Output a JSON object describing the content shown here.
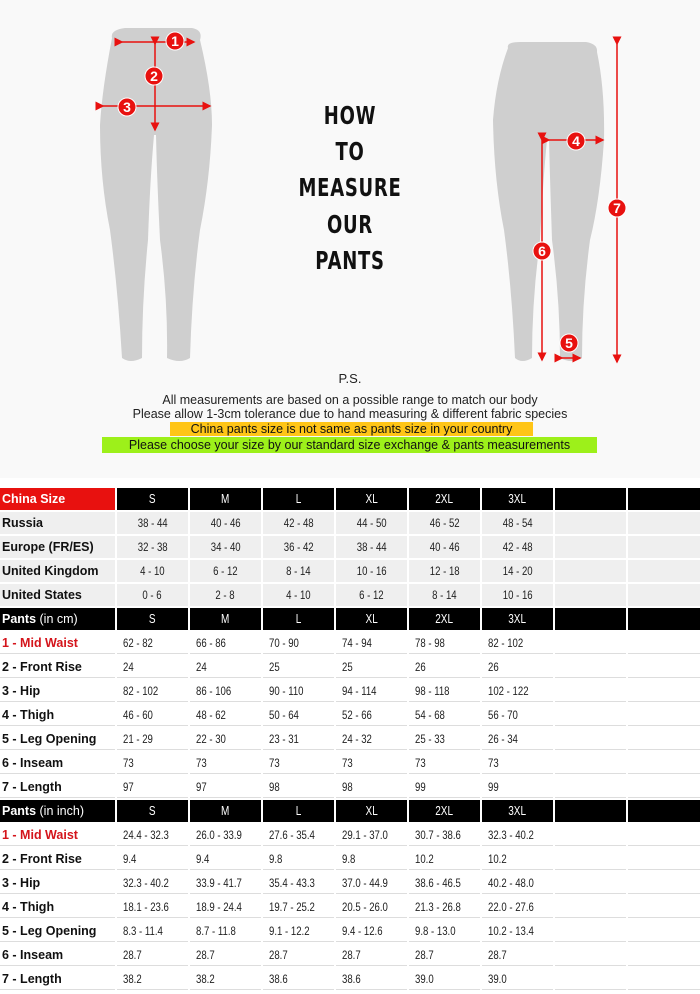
{
  "title_lines": [
    "HOW",
    "TO",
    "MEASURE",
    "OUR",
    "PANTS"
  ],
  "markers": [
    "1",
    "2",
    "3",
    "4",
    "5",
    "6",
    "7"
  ],
  "ps": "P.S.",
  "notes": [
    "All measurements are based on a possible range to match our body",
    "Please allow 1-3cm tolerance due to hand measuring & different fabric species"
  ],
  "highlight_orange": {
    "text": "China pants size is not same as pants size in your country",
    "color": "#ffc517"
  },
  "highlight_green": {
    "text": "Please choose your size by our standard size exchange & pants measurements",
    "color": "#9df01a"
  },
  "colors": {
    "marker": "#e8110f",
    "silhouette": "#cfcfcf",
    "header": "#000000",
    "accent": "#e8110f"
  },
  "sections": [
    {
      "header": {
        "label": "China Size",
        "sub": "",
        "sizes": [
          "S",
          "M",
          "L",
          "XL",
          "2XL",
          "3XL"
        ]
      },
      "style": "grey",
      "rows": [
        {
          "label": "Russia",
          "values": [
            "38 - 44",
            "40 - 46",
            "42 - 48",
            "44 - 50",
            "46 - 52",
            "48 - 54"
          ]
        },
        {
          "label": "Europe (FR/ES)",
          "values": [
            "32 - 38",
            "34 - 40",
            "36 - 42",
            "38 - 44",
            "40 - 46",
            "42 - 48"
          ]
        },
        {
          "label": "United Kingdom",
          "values": [
            "4 - 10",
            "6 - 12",
            "8 - 14",
            "10 - 16",
            "12 - 18",
            "14 - 20"
          ]
        },
        {
          "label": "United States",
          "values": [
            "0 - 6",
            "2 - 8",
            "4 - 10",
            "6 - 12",
            "8 - 14",
            "10 - 16"
          ]
        }
      ]
    },
    {
      "header": {
        "label": "Pants",
        "sub": " (in cm)",
        "sizes": [
          "S",
          "M",
          "L",
          "XL",
          "2XL",
          "3XL"
        ]
      },
      "style": "plain",
      "rows": [
        {
          "label": "1 - Mid Waist",
          "values": [
            "62 - 82",
            "66 - 86",
            "70 - 90",
            "74 - 94",
            "78 - 98",
            "82 - 102"
          ]
        },
        {
          "label": "2 - Front Rise",
          "values": [
            "24",
            "24",
            "25",
            "25",
            "26",
            "26"
          ]
        },
        {
          "label": "3 - Hip",
          "values": [
            "82 - 102",
            "86 - 106",
            "90 - 110",
            "94 - 114",
            "98 - 118",
            "102 - 122"
          ]
        },
        {
          "label": "4 - Thigh",
          "values": [
            "46 - 60",
            "48 - 62",
            "50 - 64",
            "52 - 66",
            "54 - 68",
            "56 - 70"
          ]
        },
        {
          "label": "5 - Leg Opening",
          "values": [
            "21 - 29",
            "22 - 30",
            "23 - 31",
            "24 - 32",
            "25 - 33",
            "26 - 34"
          ]
        },
        {
          "label": "6 - Inseam",
          "values": [
            "73",
            "73",
            "73",
            "73",
            "73",
            "73"
          ]
        },
        {
          "label": "7 - Length",
          "values": [
            "97",
            "97",
            "98",
            "98",
            "99",
            "99"
          ]
        }
      ]
    },
    {
      "header": {
        "label": "Pants",
        "sub": " (in inch)",
        "sizes": [
          "S",
          "M",
          "L",
          "XL",
          "2XL",
          "3XL"
        ]
      },
      "style": "plain",
      "rows": [
        {
          "label": "1 - Mid Waist",
          "values": [
            "24.4 - 32.3",
            "26.0 - 33.9",
            "27.6 - 35.4",
            "29.1 - 37.0",
            "30.7 - 38.6",
            "32.3 - 40.2"
          ]
        },
        {
          "label": "2 - Front Rise",
          "values": [
            "9.4",
            "9.4",
            "9.8",
            "9.8",
            "10.2",
            "10.2"
          ]
        },
        {
          "label": "3 - Hip",
          "values": [
            "32.3 - 40.2",
            "33.9 - 41.7",
            "35.4 - 43.3",
            "37.0 - 44.9",
            "38.6 - 46.5",
            "40.2 - 48.0"
          ]
        },
        {
          "label": "4 - Thigh",
          "values": [
            "18.1 - 23.6",
            "18.9 - 24.4",
            "19.7 - 25.2",
            "20.5 - 26.0",
            "21.3 - 26.8",
            "22.0 - 27.6"
          ]
        },
        {
          "label": "5 - Leg Opening",
          "values": [
            "8.3 - 11.4",
            "8.7 - 11.8",
            "9.1 - 12.2",
            "9.4 - 12.6",
            "9.8 - 13.0",
            "10.2 - 13.4"
          ]
        },
        {
          "label": "6 - Inseam",
          "values": [
            "28.7",
            "28.7",
            "28.7",
            "28.7",
            "28.7",
            "28.7"
          ]
        },
        {
          "label": "7 - Length",
          "values": [
            "38.2",
            "38.2",
            "38.6",
            "38.6",
            "39.0",
            "39.0"
          ]
        }
      ]
    }
  ]
}
